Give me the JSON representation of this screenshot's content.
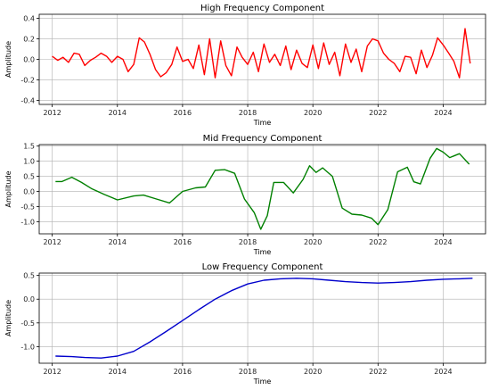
{
  "chart_data": [
    {
      "type": "line",
      "title": "High Frequency Component",
      "xlabel": "Time",
      "ylabel": "Amplitude",
      "xlim": [
        2011.6,
        2025.3
      ],
      "ylim": [
        -0.44,
        0.44
      ],
      "xticks": [
        2012,
        2014,
        2016,
        2018,
        2020,
        2022,
        2024
      ],
      "yticks": [
        -0.4,
        -0.2,
        0.0,
        0.2,
        0.4
      ],
      "ytick_labels": [
        "-0.4",
        "-0.2",
        "0.0",
        "0.2",
        "0.4"
      ],
      "grid": true,
      "color": "#ff0000",
      "points": [
        [
          2012.0,
          0.03
        ],
        [
          2012.17,
          -0.01
        ],
        [
          2012.33,
          0.02
        ],
        [
          2012.5,
          -0.03
        ],
        [
          2012.67,
          0.06
        ],
        [
          2012.83,
          0.05
        ],
        [
          2013.0,
          -0.06
        ],
        [
          2013.17,
          -0.01
        ],
        [
          2013.33,
          0.02
        ],
        [
          2013.5,
          0.06
        ],
        [
          2013.67,
          0.03
        ],
        [
          2013.83,
          -0.03
        ],
        [
          2014.0,
          0.03
        ],
        [
          2014.17,
          0.0
        ],
        [
          2014.33,
          -0.12
        ],
        [
          2014.5,
          -0.05
        ],
        [
          2014.67,
          0.21
        ],
        [
          2014.83,
          0.17
        ],
        [
          2015.0,
          0.05
        ],
        [
          2015.17,
          -0.1
        ],
        [
          2015.33,
          -0.17
        ],
        [
          2015.5,
          -0.13
        ],
        [
          2015.67,
          -0.05
        ],
        [
          2015.83,
          0.12
        ],
        [
          2016.0,
          -0.02
        ],
        [
          2016.17,
          0.0
        ],
        [
          2016.33,
          -0.09
        ],
        [
          2016.5,
          0.14
        ],
        [
          2016.67,
          -0.15
        ],
        [
          2016.83,
          0.2
        ],
        [
          2017.0,
          -0.18
        ],
        [
          2017.17,
          0.18
        ],
        [
          2017.33,
          -0.06
        ],
        [
          2017.5,
          -0.16
        ],
        [
          2017.67,
          0.12
        ],
        [
          2017.83,
          0.02
        ],
        [
          2018.0,
          -0.05
        ],
        [
          2018.17,
          0.07
        ],
        [
          2018.33,
          -0.12
        ],
        [
          2018.5,
          0.15
        ],
        [
          2018.67,
          -0.03
        ],
        [
          2018.83,
          0.05
        ],
        [
          2019.0,
          -0.06
        ],
        [
          2019.17,
          0.13
        ],
        [
          2019.33,
          -0.1
        ],
        [
          2019.5,
          0.09
        ],
        [
          2019.67,
          -0.04
        ],
        [
          2019.83,
          -0.08
        ],
        [
          2020.0,
          0.14
        ],
        [
          2020.17,
          -0.09
        ],
        [
          2020.33,
          0.16
        ],
        [
          2020.5,
          -0.05
        ],
        [
          2020.67,
          0.07
        ],
        [
          2020.83,
          -0.16
        ],
        [
          2021.0,
          0.15
        ],
        [
          2021.17,
          -0.03
        ],
        [
          2021.33,
          0.1
        ],
        [
          2021.5,
          -0.12
        ],
        [
          2021.67,
          0.13
        ],
        [
          2021.83,
          0.2
        ],
        [
          2022.0,
          0.18
        ],
        [
          2022.17,
          0.06
        ],
        [
          2022.33,
          0.0
        ],
        [
          2022.5,
          -0.04
        ],
        [
          2022.67,
          -0.12
        ],
        [
          2022.83,
          0.03
        ],
        [
          2023.0,
          0.02
        ],
        [
          2023.17,
          -0.14
        ],
        [
          2023.33,
          0.09
        ],
        [
          2023.5,
          -0.08
        ],
        [
          2023.67,
          0.04
        ],
        [
          2023.83,
          0.21
        ],
        [
          2024.0,
          0.14
        ],
        [
          2024.17,
          0.06
        ],
        [
          2024.33,
          -0.02
        ],
        [
          2024.5,
          -0.18
        ],
        [
          2024.67,
          0.3
        ],
        [
          2024.83,
          -0.04
        ]
      ]
    },
    {
      "type": "line",
      "title": "Mid Frequency Component",
      "xlabel": "Time",
      "ylabel": "Amplitude",
      "xlim": [
        2011.6,
        2025.3
      ],
      "ylim": [
        -1.4,
        1.55
      ],
      "xticks": [
        2012,
        2014,
        2016,
        2018,
        2020,
        2022,
        2024
      ],
      "yticks": [
        -1.0,
        -0.5,
        0.0,
        0.5,
        1.0,
        1.5
      ],
      "ytick_labels": [
        "-1.0",
        "-0.5",
        "0.0",
        "0.5",
        "1.0",
        "1.5"
      ],
      "grid": true,
      "color": "#008000",
      "points": [
        [
          2012.1,
          0.33
        ],
        [
          2012.3,
          0.33
        ],
        [
          2012.6,
          0.47
        ],
        [
          2012.9,
          0.3
        ],
        [
          2013.2,
          0.1
        ],
        [
          2013.6,
          -0.1
        ],
        [
          2014.0,
          -0.28
        ],
        [
          2014.5,
          -0.15
        ],
        [
          2014.8,
          -0.12
        ],
        [
          2015.2,
          -0.25
        ],
        [
          2015.6,
          -0.38
        ],
        [
          2016.0,
          0.0
        ],
        [
          2016.4,
          0.12
        ],
        [
          2016.7,
          0.15
        ],
        [
          2017.0,
          0.7
        ],
        [
          2017.3,
          0.72
        ],
        [
          2017.6,
          0.6
        ],
        [
          2017.9,
          -0.25
        ],
        [
          2018.2,
          -0.7
        ],
        [
          2018.4,
          -1.25
        ],
        [
          2018.6,
          -0.8
        ],
        [
          2018.8,
          0.3
        ],
        [
          2019.1,
          0.3
        ],
        [
          2019.4,
          -0.05
        ],
        [
          2019.7,
          0.4
        ],
        [
          2019.9,
          0.85
        ],
        [
          2020.1,
          0.63
        ],
        [
          2020.3,
          0.78
        ],
        [
          2020.6,
          0.5
        ],
        [
          2020.9,
          -0.55
        ],
        [
          2021.2,
          -0.75
        ],
        [
          2021.5,
          -0.78
        ],
        [
          2021.8,
          -0.88
        ],
        [
          2022.0,
          -1.1
        ],
        [
          2022.3,
          -0.6
        ],
        [
          2022.6,
          0.65
        ],
        [
          2022.9,
          0.8
        ],
        [
          2023.1,
          0.32
        ],
        [
          2023.3,
          0.25
        ],
        [
          2023.6,
          1.1
        ],
        [
          2023.8,
          1.42
        ],
        [
          2024.0,
          1.3
        ],
        [
          2024.2,
          1.12
        ],
        [
          2024.5,
          1.25
        ],
        [
          2024.8,
          0.9
        ]
      ]
    },
    {
      "type": "line",
      "title": "Low Frequency Component",
      "xlabel": "Time",
      "ylabel": "Amplitude",
      "xlim": [
        2011.6,
        2025.3
      ],
      "ylim": [
        -1.35,
        0.55
      ],
      "xticks": [
        2012,
        2014,
        2016,
        2018,
        2020,
        2022,
        2024
      ],
      "yticks": [
        -1.0,
        -0.5,
        0.0,
        0.5
      ],
      "ytick_labels": [
        "-1.0",
        "-0.5",
        "0.0",
        "0.5"
      ],
      "grid": true,
      "color": "#0000cc",
      "points": [
        [
          2012.1,
          -1.2
        ],
        [
          2012.6,
          -1.21
        ],
        [
          2013.0,
          -1.23
        ],
        [
          2013.5,
          -1.24
        ],
        [
          2014.0,
          -1.2
        ],
        [
          2014.5,
          -1.1
        ],
        [
          2015.0,
          -0.9
        ],
        [
          2015.5,
          -0.68
        ],
        [
          2016.0,
          -0.45
        ],
        [
          2016.5,
          -0.22
        ],
        [
          2017.0,
          0.0
        ],
        [
          2017.5,
          0.18
        ],
        [
          2018.0,
          0.32
        ],
        [
          2018.5,
          0.4
        ],
        [
          2019.0,
          0.43
        ],
        [
          2019.5,
          0.44
        ],
        [
          2020.0,
          0.43
        ],
        [
          2020.5,
          0.4
        ],
        [
          2021.0,
          0.37
        ],
        [
          2021.5,
          0.35
        ],
        [
          2022.0,
          0.34
        ],
        [
          2022.5,
          0.35
        ],
        [
          2023.0,
          0.37
        ],
        [
          2023.5,
          0.4
        ],
        [
          2024.0,
          0.42
        ],
        [
          2024.5,
          0.43
        ],
        [
          2024.9,
          0.44
        ]
      ]
    }
  ]
}
